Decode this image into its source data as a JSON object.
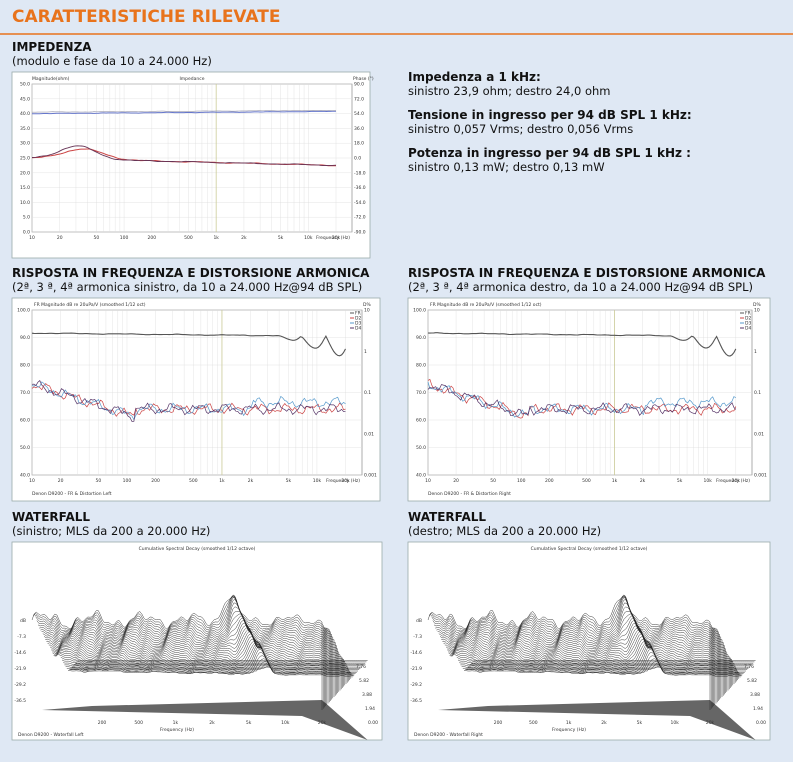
{
  "header": {
    "title": "CARATTERISTICHE RILEVATE"
  },
  "impedance": {
    "title": "IMPEDENZA",
    "subtitle": "(modulo e fase da 10 a 24.000 Hz)",
    "chart": {
      "title": "Impedance",
      "left_label": "Magnitude(ohm)",
      "right_label": "Phase (°)",
      "left_ticks": [
        "50.0",
        "45.0",
        "40.0",
        "35.0",
        "30.0",
        "25.0",
        "20.0",
        "15.0",
        "10.0",
        "5.0",
        "0.0"
      ],
      "right_ticks": [
        "90.0",
        "72.0",
        "54.0",
        "36.0",
        "18.0",
        "0.0",
        "-18.0",
        "-36.0",
        "-54.0",
        "-72.0",
        "-90.0"
      ],
      "x_ticks": [
        "10",
        "20",
        "50",
        "100",
        "200",
        "500",
        "1k",
        "2k",
        "5k",
        "10k",
        "20k"
      ],
      "x_label": "Frequency (Hz)"
    }
  },
  "specs": [
    {
      "label": "Impedenza a 1 kHz:",
      "value": "sinistro 23,9 ohm; destro 24,0 ohm"
    },
    {
      "label": "Tensione in ingresso per 94 dB SPL 1 kHz:",
      "value": "sinistro 0,057 Vrms; destro 0,056 Vrms"
    },
    {
      "label": "Potenza in ingresso per 94 dB SPL 1 kHz :",
      "value": "sinistro 0,13 mW; destro 0,13 mW"
    }
  ],
  "frequency_response": [
    {
      "title": "RISPOSTA IN FREQUENZA E DISTORSIONE ARMONICA",
      "subtitle": "(2ª, 3 ª, 4ª armonica sinistro, da 10 a 24.000 Hz@94 dB SPL)",
      "chart": {
        "title": "FR Magnitude dB re 20uPa/V (smoothed 1/12 oct)",
        "right_label": "D%",
        "legend": [
          "FR",
          "D2",
          "D3",
          "D4"
        ],
        "left_ticks": [
          "100.0",
          "90.0",
          "80.0",
          "70.0",
          "60.0",
          "50.0",
          "40.0"
        ],
        "right_ticks": [
          "10",
          "1",
          "0.1",
          "0.01",
          "0.001"
        ],
        "x_ticks": [
          "10",
          "20",
          "50",
          "100",
          "200",
          "500",
          "1k",
          "2k",
          "5k",
          "10k",
          "20k"
        ],
        "x_label": "Frequency (Hz)",
        "note": "Denon D9200 - FR & Distortion Left"
      }
    },
    {
      "title": "RISPOSTA IN FREQUENZA E DISTORSIONE ARMONICA",
      "subtitle": "(2ª, 3 ª, 4ª armonica destro, da 10 a 24.000 Hz@94 dB SPL)",
      "chart": {
        "title": "FR Magnitude dB re 20uPa/V (smoothed 1/12 oct)",
        "right_label": "D%",
        "legend": [
          "FR",
          "D2",
          "D3",
          "D4"
        ],
        "left_ticks": [
          "100.0",
          "90.0",
          "80.0",
          "70.0",
          "60.0",
          "50.0",
          "40.0"
        ],
        "right_ticks": [
          "10",
          "1",
          "0.1",
          "0.01",
          "0.001"
        ],
        "x_ticks": [
          "10",
          "20",
          "50",
          "100",
          "200",
          "500",
          "1k",
          "2k",
          "5k",
          "10k",
          "20k"
        ],
        "x_label": "Frequency (Hz)",
        "note": "Denon D9200 - FR & Distortion Right"
      }
    }
  ],
  "waterfall": [
    {
      "title": "WATERFALL",
      "subtitle": "(sinistro; MLS da 200 a 20.000 Hz)",
      "chart": {
        "title": "Cumulative Spectral Decay (smoothed 1/12 octave)",
        "y_ticks": [
          "dB",
          "-7.3",
          "-14.6",
          "-21.9",
          "-29.2",
          "-36.5"
        ],
        "x_ticks": [
          "200",
          "500",
          "1k",
          "2k",
          "5k",
          "10k",
          "20k"
        ],
        "t_ticks": [
          "0.00",
          "1.94",
          "3.88",
          "5.82",
          "7.76"
        ],
        "x_label": "Frequency (Hz)",
        "note": "Denon D9200 - Waterfall Left"
      }
    },
    {
      "title": "WATERFALL",
      "subtitle": "(destro; MLS da 200 a 20.000 Hz)",
      "chart": {
        "title": "Cumulative Spectral Decay (smoothed 1/12 octave)",
        "y_ticks": [
          "dB",
          "-7.3",
          "-14.6",
          "-21.9",
          "-29.2",
          "-36.5"
        ],
        "x_ticks": [
          "200",
          "500",
          "1k",
          "2k",
          "5k",
          "10k",
          "20k"
        ],
        "t_ticks": [
          "0.00",
          "1.94",
          "3.88",
          "5.82",
          "7.76"
        ],
        "x_label": "Frequency (Hz)",
        "note": "Denon D9200 - Waterfall Right"
      }
    }
  ]
}
